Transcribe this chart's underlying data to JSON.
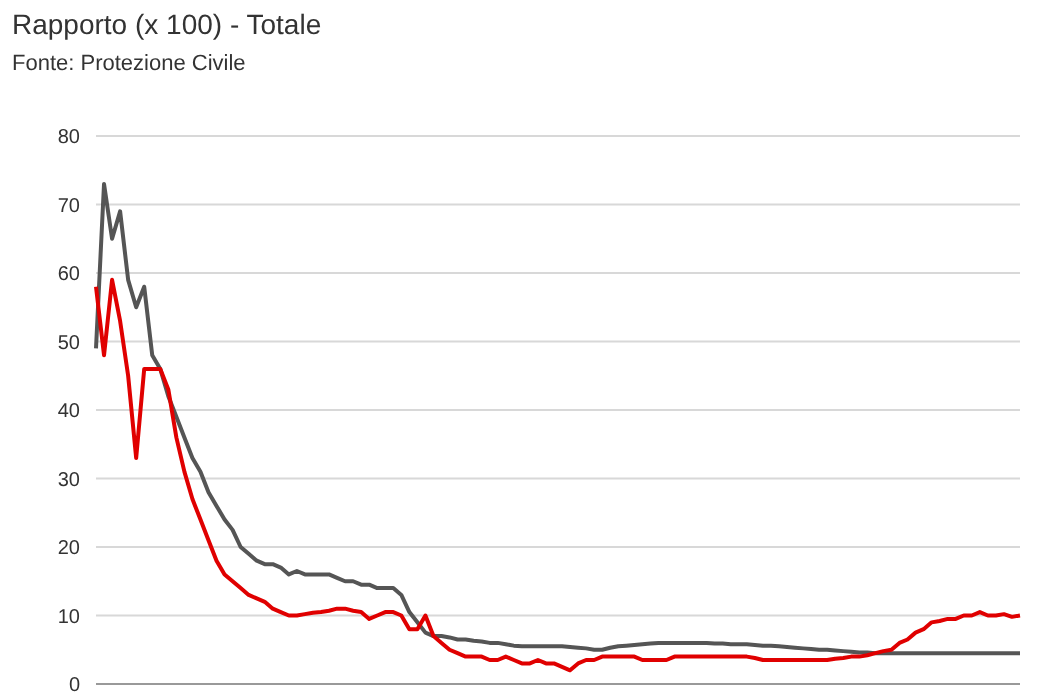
{
  "chart_data": {
    "type": "line",
    "title": "Rapporto (x 100) - Totale",
    "subtitle": "Fonte: Protezione Civile",
    "ylim": [
      0,
      80
    ],
    "yticks": [
      0,
      10,
      20,
      30,
      40,
      50,
      60,
      70,
      80
    ],
    "grid": "y",
    "marker": "none",
    "line_style": "solid",
    "categories": [
      null,
      null,
      null,
      null,
      null,
      null,
      null,
      null,
      null,
      null,
      null,
      null,
      null,
      null,
      null,
      null,
      null,
      null,
      null,
      null,
      null,
      null,
      null,
      null,
      null,
      null,
      null,
      null,
      null,
      null,
      null,
      null,
      null,
      null,
      null,
      null,
      null,
      null,
      null,
      null,
      null,
      null,
      null,
      null,
      null,
      null,
      null,
      null,
      null,
      null,
      null,
      null,
      null,
      null,
      null,
      null,
      null,
      null,
      null,
      null,
      null,
      null,
      null,
      null,
      null,
      null,
      null,
      null,
      null,
      null,
      null,
      null,
      null,
      null,
      null,
      null,
      null,
      null,
      null,
      null,
      null,
      null,
      null,
      null,
      null,
      null,
      null,
      null,
      null,
      null,
      null,
      null,
      null,
      null,
      null,
      null,
      null,
      null,
      null,
      null,
      null,
      null,
      null,
      null,
      null,
      null,
      null,
      null,
      null,
      null,
      null,
      null,
      null,
      null,
      null,
      null
    ],
    "series": [
      {
        "color": "#555555",
        "values": [
          49,
          73,
          65,
          69,
          59,
          55,
          58,
          48,
          46,
          42,
          39,
          36,
          33,
          31,
          28,
          26,
          24,
          22.5,
          20,
          19,
          18,
          17.5,
          17.5,
          17,
          16,
          16.5,
          16,
          16,
          16,
          16,
          15.5,
          15,
          15,
          14.5,
          14.5,
          14,
          14,
          14,
          13,
          10.5,
          9,
          7.5,
          7,
          7,
          6.8,
          6.5,
          6.5,
          6.3,
          6.2,
          6,
          6,
          5.8,
          5.6,
          5.5,
          5.5,
          5.5,
          5.5,
          5.5,
          5.5,
          5.4,
          5.3,
          5.2,
          5,
          5,
          5.3,
          5.5,
          5.6,
          5.7,
          5.8,
          5.9,
          6,
          6,
          6,
          6,
          6,
          6,
          6,
          5.9,
          5.9,
          5.8,
          5.8,
          5.8,
          5.7,
          5.6,
          5.6,
          5.5,
          5.4,
          5.3,
          5.2,
          5.1,
          5,
          5,
          4.9,
          4.8,
          4.7,
          4.6,
          4.6,
          4.5,
          4.5,
          4.5,
          4.5,
          4.5,
          4.5,
          4.5,
          4.5,
          4.5,
          4.5,
          4.5,
          4.5,
          4.5,
          4.5,
          4.5,
          4.5,
          4.5,
          4.5,
          4.5
        ]
      },
      {
        "color": "#e00000",
        "values": [
          58,
          48,
          59,
          53,
          45,
          33,
          46,
          46,
          46,
          43,
          36,
          31,
          27,
          24,
          21,
          18,
          16,
          15,
          14,
          13,
          12.5,
          12,
          11,
          10.5,
          10,
          10,
          10.2,
          10.4,
          10.5,
          10.7,
          11,
          11,
          10.7,
          10.5,
          9.5,
          10,
          10.5,
          10.5,
          10,
          8,
          8,
          10,
          7,
          6,
          5,
          4.5,
          4,
          4,
          4,
          3.5,
          3.5,
          4,
          3.5,
          3,
          3,
          3.5,
          3,
          3,
          2.5,
          2,
          3,
          3.5,
          3.5,
          4,
          4,
          4,
          4,
          4,
          3.5,
          3.5,
          3.5,
          3.5,
          4,
          4,
          4,
          4,
          4,
          4,
          4,
          4,
          4,
          4,
          3.8,
          3.5,
          3.5,
          3.5,
          3.5,
          3.5,
          3.5,
          3.5,
          3.5,
          3.5,
          3.7,
          3.8,
          4,
          4,
          4.2,
          4.5,
          4.8,
          5,
          6,
          6.5,
          7.5,
          8,
          9,
          9.2,
          9.5,
          9.5,
          10,
          10,
          10.5,
          10,
          10,
          10.2,
          9.8,
          10
        ]
      }
    ]
  }
}
